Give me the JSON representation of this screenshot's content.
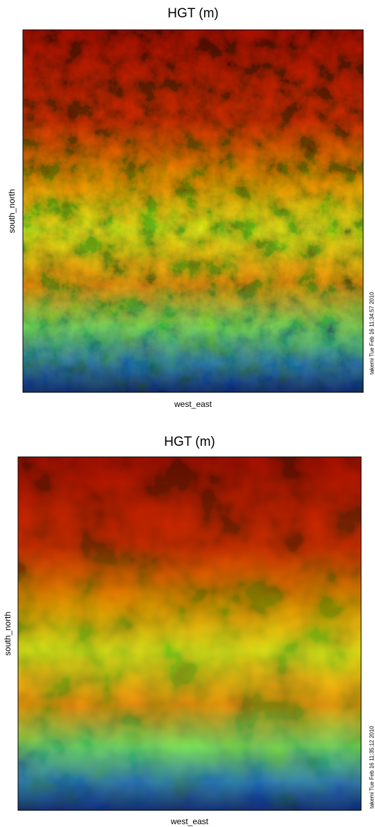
{
  "chart_data": [
    {
      "type": "heatmap",
      "title": "HGT (m)",
      "xlabel": "west_east",
      "ylabel": "south_north",
      "annotation": "takemi Tue Feb 16 11:34:57 2010"
    },
    {
      "type": "heatmap",
      "title": "HGT (m)",
      "xlabel": "west_east",
      "ylabel": "south_north",
      "annotation": "takemi Tue Feb 16 11:35:12 2010"
    }
  ]
}
